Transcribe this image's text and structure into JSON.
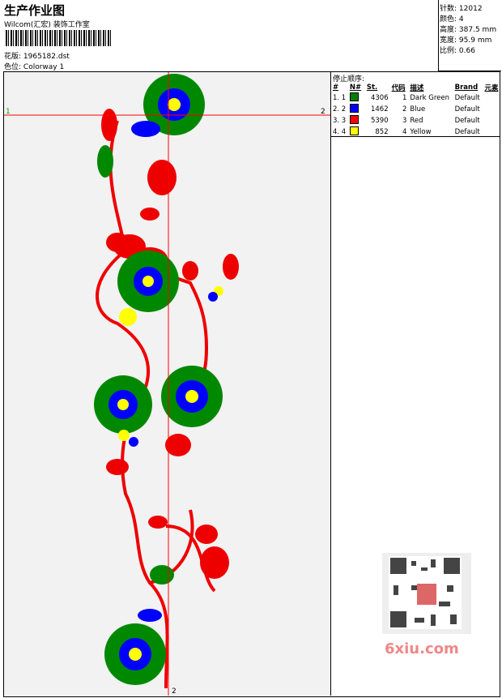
{
  "header": {
    "title": "生产作业图",
    "studio": "Wilcom(汇宏) 装饰工作室",
    "design_label": "花版:",
    "design_file": "1965182.dst",
    "colorway_label": "色位:",
    "colorway": "Colorway 1"
  },
  "stats": [
    {
      "label": "针数:",
      "value": "12012"
    },
    {
      "label": "颜色:",
      "value": "4"
    },
    {
      "label": "高度:",
      "value": "387.5 mm"
    },
    {
      "label": "宽度:",
      "value": "95.9 mm"
    },
    {
      "label": "比例:",
      "value": "0.66"
    }
  ],
  "stop_sequence": {
    "title": "停止顺序:",
    "columns": [
      "#",
      "N#",
      "St.",
      "代码",
      "描述",
      "Brand",
      "元素"
    ],
    "rows": [
      {
        "index": "1. 1",
        "color": "#008000",
        "stitches": "4306",
        "code": "1",
        "description": "Dark Green",
        "brand": "Default"
      },
      {
        "index": "2. 2",
        "color": "#0000ff",
        "stitches": "1462",
        "code": "2",
        "description": "Blue",
        "brand": "Default"
      },
      {
        "index": "3. 3",
        "color": "#ff0000",
        "stitches": "5390",
        "code": "3",
        "description": "Red",
        "brand": "Default"
      },
      {
        "index": "4. 4",
        "color": "#ffff00",
        "stitches": "852",
        "code": "4",
        "description": "Yellow",
        "brand": "Default"
      }
    ]
  },
  "markers": {
    "left": "1",
    "right": "2",
    "bottom": "2"
  },
  "watermark": "6xiu.com"
}
